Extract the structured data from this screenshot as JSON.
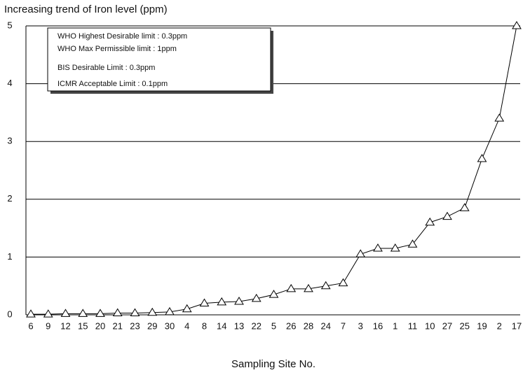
{
  "chart_data": {
    "type": "line",
    "title": "Increasing trend of Iron level (ppm)",
    "x_label": "Sampling Site No.",
    "annotations": [
      "WHO Highest Desirable limit : 0.3ppm",
      "WHO Max  Permissible limit : 1ppm",
      "BIS Desirable Limit : 0.3ppm",
      "ICMR Acceptable Limit : 0.1ppm"
    ],
    "categories": [
      "6",
      "9",
      "12",
      "15",
      "20",
      "21",
      "23",
      "29",
      "30",
      "4",
      "8",
      "14",
      "13",
      "22",
      "5",
      "26",
      "28",
      "24",
      "7",
      "3",
      "16",
      "1",
      "11",
      "10",
      "27",
      "25",
      "19",
      "2",
      "17"
    ],
    "series": [
      {
        "name": "Iron level",
        "color": "#000000",
        "values": [
          0.01,
          0.01,
          0.02,
          0.02,
          0.02,
          0.03,
          0.03,
          0.04,
          0.05,
          0.1,
          0.2,
          0.22,
          0.23,
          0.28,
          0.35,
          0.45,
          0.45,
          0.5,
          0.55,
          1.05,
          1.15,
          1.15,
          1.22,
          1.6,
          1.7,
          1.85,
          2.7,
          3.4,
          5.0
        ]
      }
    ],
    "ylim": [
      0,
      5
    ],
    "yticks": [
      0,
      1,
      2,
      3,
      4,
      5
    ],
    "grid": true
  }
}
